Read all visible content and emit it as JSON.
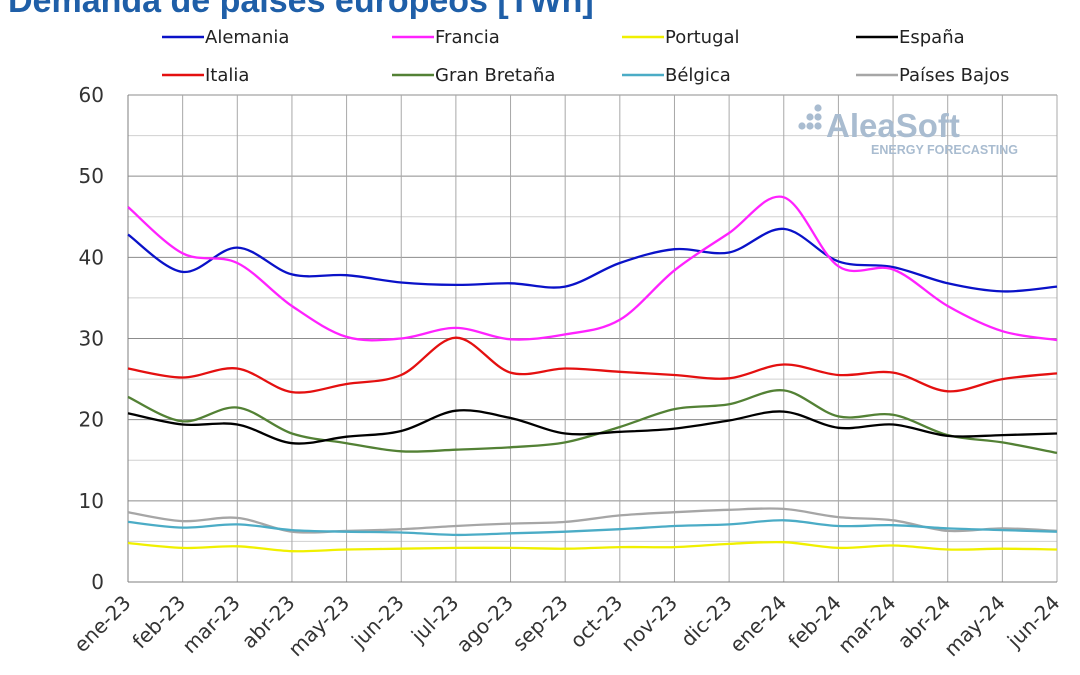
{
  "chart_data": {
    "type": "line",
    "title": "Demanda de países europeos [TWh]",
    "xlabel": "",
    "ylabel": "",
    "ylim": [
      0,
      60
    ],
    "yticks": [
      0,
      10,
      20,
      30,
      40,
      50,
      60
    ],
    "grid": true,
    "legend_position": "top",
    "categories": [
      "ene-23",
      "feb-23",
      "mar-23",
      "abr-23",
      "may-23",
      "jun-23",
      "jul-23",
      "ago-23",
      "sep-23",
      "oct-23",
      "nov-23",
      "dic-23",
      "ene-24",
      "feb-24",
      "mar-24",
      "abr-24",
      "may-24",
      "jun-24"
    ],
    "series": [
      {
        "name": "Alemania",
        "color": "#0a12c8",
        "values": [
          42.8,
          38.2,
          41.2,
          37.9,
          37.8,
          36.9,
          36.6,
          36.8,
          36.4,
          39.3,
          41.0,
          40.6,
          43.5,
          39.5,
          38.8,
          36.8,
          35.8,
          36.4
        ]
      },
      {
        "name": "Francia",
        "color": "#ff22ff",
        "values": [
          46.2,
          40.5,
          39.3,
          34.0,
          30.2,
          30.0,
          31.3,
          29.9,
          30.5,
          32.3,
          38.4,
          43.0,
          47.4,
          38.9,
          38.5,
          34.0,
          30.9,
          29.8
        ]
      },
      {
        "name": "Portugal",
        "color": "#f0f000",
        "values": [
          4.8,
          4.2,
          4.4,
          3.8,
          4.0,
          4.1,
          4.2,
          4.2,
          4.1,
          4.3,
          4.3,
          4.7,
          4.9,
          4.2,
          4.5,
          4.0,
          4.1,
          4.0
        ]
      },
      {
        "name": "España",
        "color": "#000000",
        "values": [
          20.8,
          19.4,
          19.4,
          17.1,
          17.9,
          18.6,
          21.1,
          20.2,
          18.3,
          18.5,
          18.9,
          19.9,
          21.0,
          19.0,
          19.4,
          18.0,
          18.1,
          18.3
        ]
      },
      {
        "name": "Italia",
        "color": "#e41010",
        "values": [
          26.3,
          25.2,
          26.3,
          23.4,
          24.4,
          25.5,
          30.1,
          25.8,
          26.3,
          25.9,
          25.5,
          25.1,
          26.8,
          25.5,
          25.8,
          23.5,
          25.0,
          25.7
        ]
      },
      {
        "name": "Gran Bretaña",
        "color": "#538135",
        "values": [
          22.8,
          19.8,
          21.5,
          18.3,
          17.1,
          16.1,
          16.3,
          16.6,
          17.2,
          19.1,
          21.3,
          21.9,
          23.6,
          20.4,
          20.6,
          18.1,
          17.2,
          15.9
        ]
      },
      {
        "name": "Bélgica",
        "color": "#4bacc6",
        "values": [
          7.4,
          6.7,
          7.1,
          6.4,
          6.2,
          6.1,
          5.8,
          6.0,
          6.2,
          6.5,
          6.9,
          7.1,
          7.6,
          6.9,
          7.0,
          6.6,
          6.4,
          6.2
        ]
      },
      {
        "name": "Países Bajos",
        "color": "#a6a6a6",
        "values": [
          8.6,
          7.5,
          7.9,
          6.2,
          6.3,
          6.5,
          6.9,
          7.2,
          7.4,
          8.2,
          8.6,
          8.9,
          9.0,
          8.0,
          7.6,
          6.3,
          6.6,
          6.3
        ]
      }
    ]
  },
  "watermark": {
    "brand": "AleaSoft",
    "tagline": "ENERGY FORECASTING",
    "logo_color": "#a9bcd0"
  }
}
